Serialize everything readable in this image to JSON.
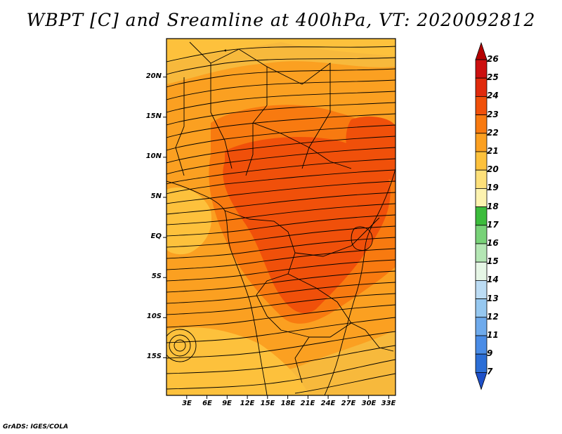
{
  "title": "WBPT [C] and Sreamline at 400hPa, VT: 2020092812",
  "footer": "GrADS: IGES/COLA",
  "map": {
    "lat_ticks": [
      "20N",
      "15N",
      "10N",
      "5N",
      "EQ",
      "5S",
      "10S",
      "15S"
    ],
    "lat_values": [
      20,
      15,
      10,
      5,
      0,
      -5,
      -10,
      -15
    ],
    "lon_ticks": [
      "3E",
      "6E",
      "9E",
      "12E",
      "15E",
      "18E",
      "21E",
      "24E",
      "27E",
      "30E",
      "33E"
    ],
    "lon_values": [
      3,
      6,
      9,
      12,
      15,
      18,
      21,
      24,
      27,
      30,
      33
    ],
    "lat_range": [
      -20,
      24.5
    ],
    "lon_range": [
      0,
      34
    ],
    "background_color": "#f7b93c"
  },
  "colorbar": {
    "levels": [
      "26",
      "25",
      "24",
      "23",
      "22",
      "21",
      "20",
      "19",
      "18",
      "17",
      "16",
      "15",
      "14",
      "13",
      "12",
      "11",
      "9",
      "7"
    ],
    "colors": [
      "#b40000",
      "#cc1010",
      "#e02a0c",
      "#f0500a",
      "#f87a10",
      "#fba021",
      "#fdc13c",
      "#fde07a",
      "#fdf3b0",
      "#3cbc3c",
      "#78d278",
      "#b4e6b4",
      "#e6f6e6",
      "#bcdcf4",
      "#96c8f0",
      "#6eaaec",
      "#4a8ce6",
      "#2c6ed6",
      "#1e50c8"
    ]
  }
}
